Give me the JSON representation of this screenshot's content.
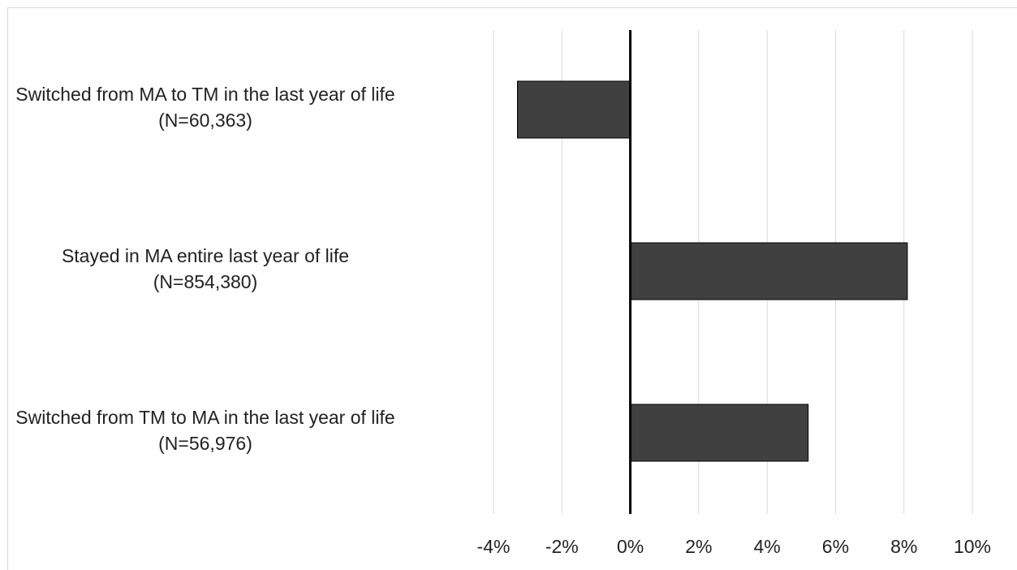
{
  "chart_data": {
    "type": "bar",
    "orientation": "horizontal",
    "categories": [
      {
        "line1": "Switched from MA to TM in the last year of life",
        "line2": "(N=60,363)"
      },
      {
        "line1": "Stayed in MA entire last year of life",
        "line2": "(N=854,380)"
      },
      {
        "line1": "Switched from TM to MA in the last year of life",
        "line2": "(N=56,976)"
      }
    ],
    "values": [
      -3.3,
      8.1,
      5.2
    ],
    "xlim": [
      -4,
      10
    ],
    "xticks": [
      "-4%",
      "-2%",
      "0%",
      "2%",
      "4%",
      "6%",
      "8%",
      "10%"
    ],
    "xtick_values": [
      -4,
      -2,
      0,
      2,
      4,
      6,
      8,
      10
    ],
    "grid": true,
    "title": "",
    "xlabel": "",
    "ylabel": "",
    "colors": {
      "bar": "#404040",
      "bar_edge": "#000000",
      "grid": "#d9d9d9",
      "zero_line": "#000000"
    }
  }
}
